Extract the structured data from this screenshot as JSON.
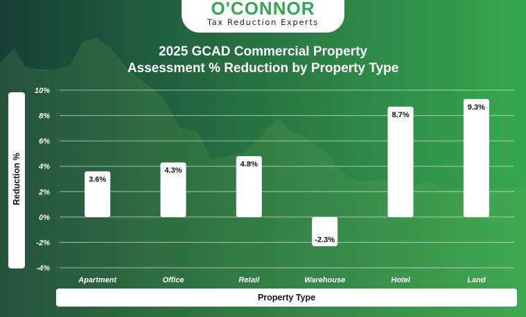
{
  "brand": {
    "name": "O'CONNOR",
    "tagline": "Tax Reduction Experts"
  },
  "colors": {
    "accent": "#2fa84f",
    "bar": "#ffffff",
    "grid": "#d9e8dc"
  },
  "chart_data": {
    "type": "bar",
    "title_line1": "2025 GCAD Commercial Property",
    "title_line2": "Assessment % Reduction by Property Type",
    "xlabel": "Property Type",
    "ylabel": "Reduction %",
    "categories": [
      "Apartment",
      "Office",
      "Retail",
      "Warehouse",
      "Hotel",
      "Land"
    ],
    "values": [
      3.6,
      4.3,
      4.8,
      -2.3,
      8.7,
      9.3
    ],
    "data_labels": [
      "3.6%",
      "4.3%",
      "4.8%",
      "-2.3%",
      "8.7%",
      "9.3%"
    ],
    "ylim": [
      -4,
      10
    ],
    "yticks": [
      10,
      8,
      6,
      4,
      2,
      0,
      -2,
      -4
    ],
    "ytick_labels": [
      "10%",
      "8%",
      "6%",
      "4%",
      "2%",
      "0%",
      "-2%",
      "-4%"
    ],
    "grid": true
  }
}
